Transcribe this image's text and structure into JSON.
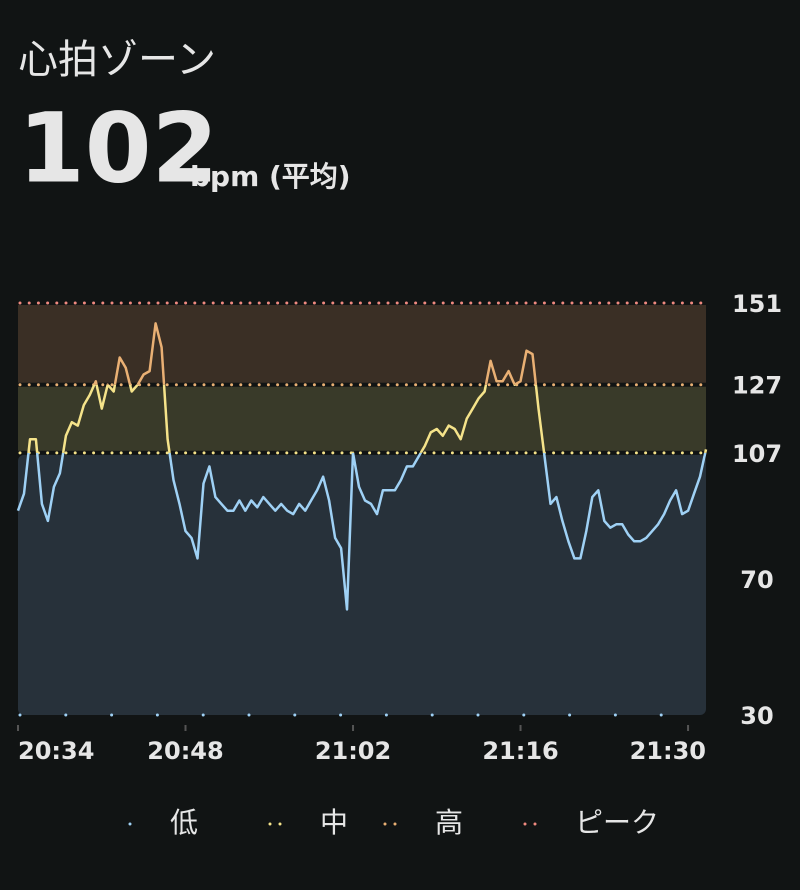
{
  "chart_data": {
    "type": "zone-line",
    "title": "心拍ゾーン",
    "average": 102,
    "average_unit": "bpm (平均)",
    "x": [
      1234,
      1234.5,
      1235,
      1235.5,
      1236,
      1236.5,
      1237,
      1237.5,
      1238,
      1238.5,
      1239,
      1239.5,
      1240,
      1240.5,
      1241,
      1241.5,
      1242,
      1242.5,
      1243,
      1243.5,
      1244,
      1244.5,
      1245,
      1245.5,
      1246,
      1246.5,
      1247,
      1247.5,
      1248,
      1248.5,
      1249,
      1249.5,
      1250,
      1250.5,
      1251,
      1251.5,
      1252,
      1252.5,
      1253,
      1253.5,
      1254,
      1254.5,
      1255,
      1255.5,
      1256,
      1256.5,
      1257,
      1257.5,
      1258,
      1258.5,
      1259,
      1259.5,
      1260,
      1260.5,
      1261,
      1261.5,
      1262,
      1262.5,
      1263,
      1263.5,
      1264,
      1264.5,
      1265,
      1265.5,
      1266,
      1266.5,
      1267,
      1267.5,
      1268,
      1268.5,
      1269,
      1269.5,
      1270,
      1270.5,
      1271,
      1271.5,
      1272,
      1272.5,
      1273,
      1273.5,
      1274,
      1274.5,
      1275,
      1275.5,
      1276,
      1276.5,
      1277,
      1277.5,
      1278,
      1278.5,
      1279,
      1279.5,
      1280,
      1280.5,
      1281,
      1281.5,
      1282,
      1282.5,
      1283,
      1283.5,
      1284,
      1284.5,
      1285,
      1285.5,
      1286,
      1286.5,
      1287,
      1287.5,
      1288,
      1288.5,
      1289,
      1289.5,
      1290,
      1290.5,
      1291,
      1291.5
    ],
    "values": [
      90,
      95,
      111,
      111,
      92,
      87,
      97,
      101,
      112,
      116,
      115,
      121,
      124,
      128,
      120,
      127,
      125,
      135,
      132,
      125,
      127,
      130,
      131,
      145,
      138,
      111,
      99,
      92,
      84,
      82,
      76,
      98,
      103,
      94,
      92,
      90,
      90,
      93,
      90,
      93,
      91,
      94,
      92,
      90,
      92,
      90,
      89,
      92,
      90,
      93,
      96,
      100,
      93,
      82,
      79,
      61,
      107,
      97,
      93,
      92,
      89,
      96,
      96,
      96,
      99,
      103,
      103,
      106,
      109,
      113,
      114,
      112,
      115,
      114,
      111,
      117,
      120,
      123,
      125,
      134,
      128,
      128,
      131,
      127,
      128,
      137,
      136,
      120,
      106,
      92,
      94,
      87,
      81,
      76,
      76,
      84,
      94,
      96,
      87,
      85,
      86,
      86,
      83,
      81,
      81,
      82,
      84,
      86,
      89,
      93,
      96,
      89,
      90,
      95,
      100,
      108
    ],
    "xlim": [
      1234,
      1291.5
    ],
    "xticks": [
      {
        "value": 1234,
        "label": "20:34"
      },
      {
        "value": 1248,
        "label": "20:48"
      },
      {
        "value": 1262,
        "label": "21:02"
      },
      {
        "value": 1276,
        "label": "21:16"
      },
      {
        "value": 1290,
        "label": "21:30"
      }
    ],
    "ylim": [
      30,
      151
    ],
    "yticks": [
      30,
      70,
      107,
      127,
      151
    ],
    "zones": [
      {
        "name": "低",
        "from": 30,
        "to": 107,
        "color": "#9fd1f5",
        "fill": "#27313a"
      },
      {
        "name": "中",
        "from": 107,
        "to": 127,
        "color": "#f5e38a",
        "fill": "#393a29"
      },
      {
        "name": "高",
        "from": 127,
        "to": 151,
        "color": "#e9b074",
        "fill": "#3a2f25"
      },
      {
        "name": "ピーク",
        "from": 151,
        "color": "#f08a80"
      }
    ]
  }
}
